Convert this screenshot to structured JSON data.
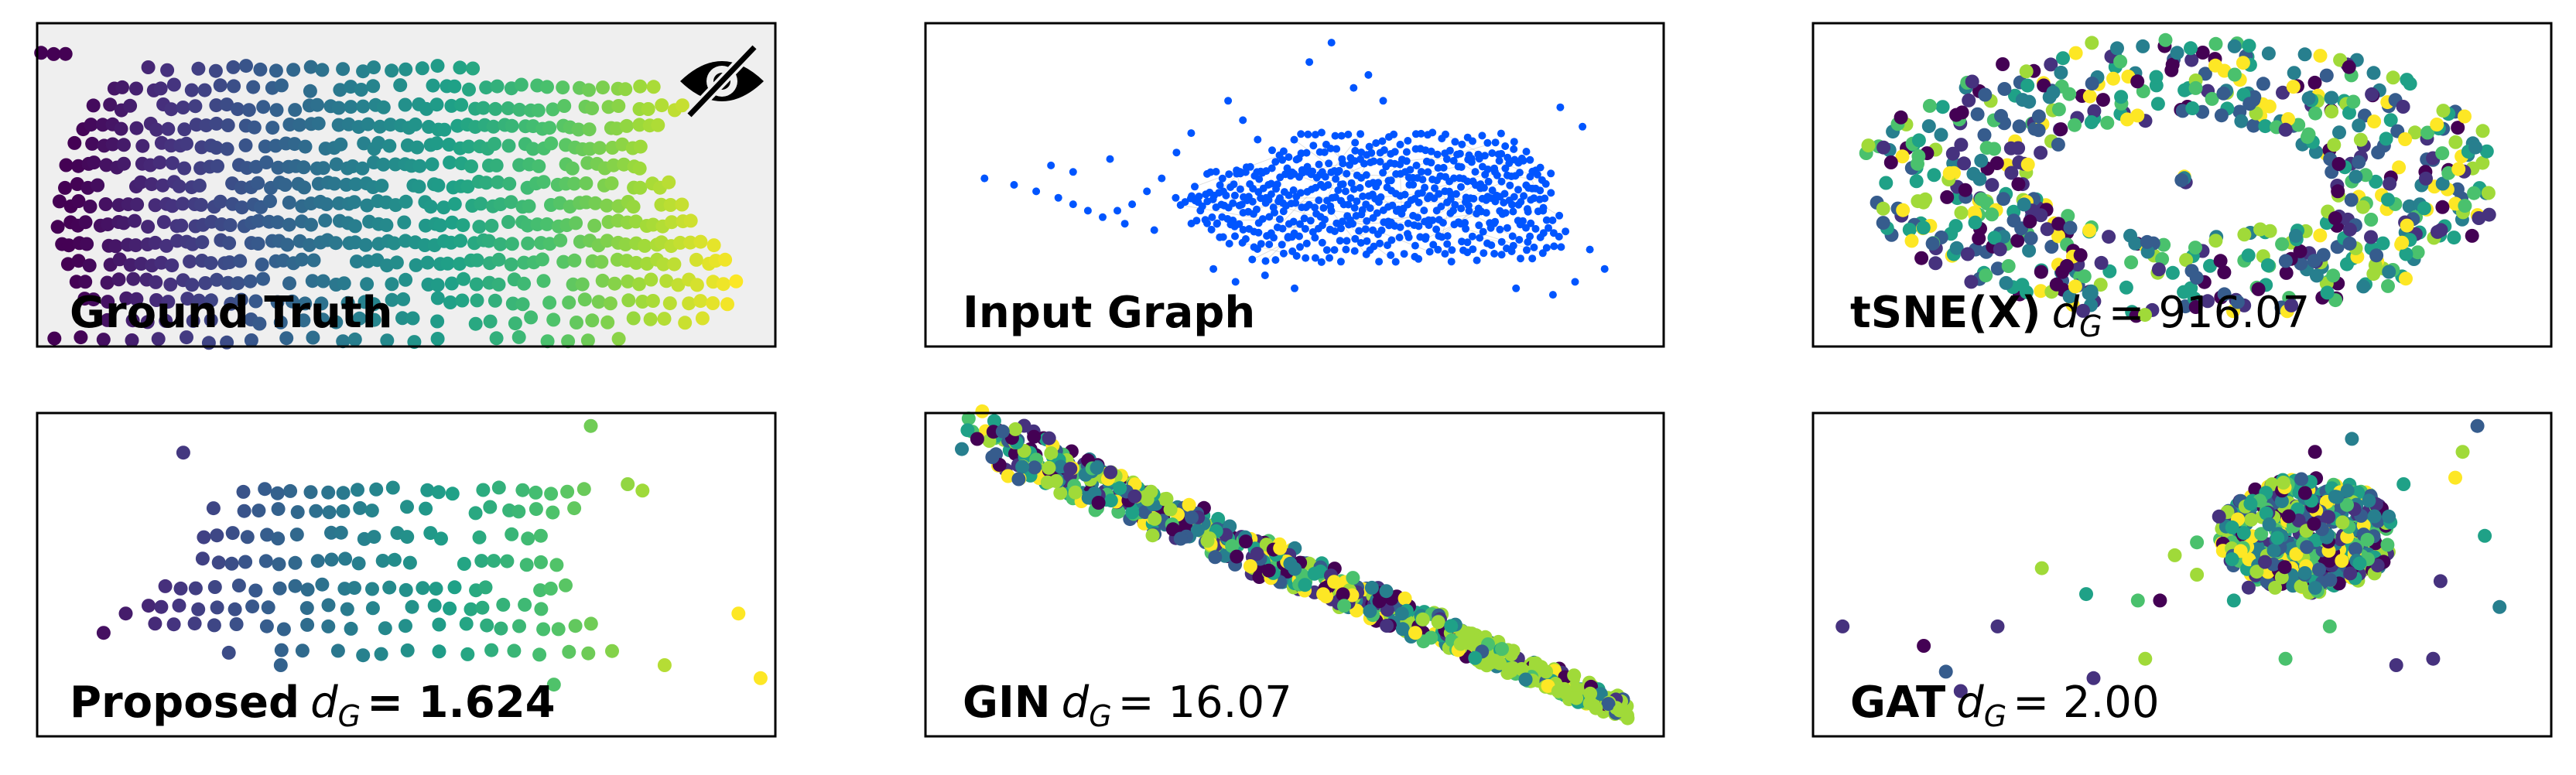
{
  "colors": {
    "viridis": [
      "#440154",
      "#46327e",
      "#365c8d",
      "#277f8e",
      "#1fa187",
      "#4ac16d",
      "#a0da39",
      "#fde725"
    ],
    "input_graph_points": "#0055ff",
    "input_graph_edges": "#c0c0c0",
    "hidden_background": "#efefef",
    "frame": "#000000"
  },
  "chart_data": [
    {
      "type": "scatter",
      "id": "ground_truth",
      "title": "Ground Truth",
      "metric_label": "",
      "metric_value": "",
      "icon": "eye-slash-icon",
      "background": "hidden",
      "axes": "off",
      "color_by": "x",
      "xlim": [
        0,
        100
      ],
      "ylim": [
        0,
        50
      ],
      "rows": [
        {
          "y": 45,
          "x_from": 1,
          "x_to": 4,
          "step": 1.5
        },
        {
          "y": 43,
          "x_from": 15,
          "x_to": 60,
          "step": 2.2
        },
        {
          "y": 40,
          "x_from": 10,
          "x_to": 85,
          "step": 1.8
        },
        {
          "y": 37,
          "x_from": 8,
          "x_to": 88,
          "step": 1.5
        },
        {
          "y": 34,
          "x_from": 6,
          "x_to": 84,
          "step": 1.3
        },
        {
          "y": 31,
          "x_from": 5,
          "x_to": 82,
          "step": 1.3
        },
        {
          "y": 28,
          "x_from": 4,
          "x_to": 84,
          "step": 1.3
        },
        {
          "y": 25,
          "x_from": 4,
          "x_to": 86,
          "step": 1.3
        },
        {
          "y": 22,
          "x_from": 3,
          "x_to": 88,
          "step": 1.3
        },
        {
          "y": 19,
          "x_from": 3,
          "x_to": 90,
          "step": 1.3
        },
        {
          "y": 16,
          "x_from": 3,
          "x_to": 92,
          "step": 1.3
        },
        {
          "y": 13,
          "x_from": 4,
          "x_to": 94,
          "step": 1.4
        },
        {
          "y": 10,
          "x_from": 5,
          "x_to": 96,
          "step": 1.6
        },
        {
          "y": 7,
          "x_from": 6,
          "x_to": 94,
          "step": 2.0
        },
        {
          "y": 4,
          "x_from": 10,
          "x_to": 92,
          "step": 2.6
        },
        {
          "y": 1,
          "x_from": 2,
          "x_to": 80,
          "step": 3.5
        }
      ]
    },
    {
      "type": "scatter",
      "id": "input_graph",
      "title": "Input Graph",
      "metric_label": "",
      "metric_value": "",
      "axes": "off",
      "color_by": "single",
      "xlim": [
        0,
        100
      ],
      "ylim": [
        0,
        50
      ],
      "rows": [
        {
          "y": 32,
          "x_from": 50,
          "x_to": 80,
          "step": 0.9
        },
        {
          "y": 30,
          "x_from": 47,
          "x_to": 82,
          "step": 0.8
        },
        {
          "y": 28,
          "x_from": 42,
          "x_to": 84,
          "step": 0.7
        },
        {
          "y": 26,
          "x_from": 38,
          "x_to": 85,
          "step": 0.6
        },
        {
          "y": 24,
          "x_from": 36,
          "x_to": 85,
          "step": 0.6
        },
        {
          "y": 22,
          "x_from": 34,
          "x_to": 84,
          "step": 0.6
        },
        {
          "y": 20,
          "x_from": 36,
          "x_to": 86,
          "step": 0.7
        },
        {
          "y": 18,
          "x_from": 38,
          "x_to": 87,
          "step": 0.8
        },
        {
          "y": 16,
          "x_from": 40,
          "x_to": 86,
          "step": 0.9
        },
        {
          "y": 14,
          "x_from": 44,
          "x_to": 84,
          "step": 1.1
        }
      ],
      "outliers": [
        [
          8,
          26
        ],
        [
          12,
          25
        ],
        [
          15,
          24
        ],
        [
          18,
          23
        ],
        [
          20,
          22
        ],
        [
          22,
          21
        ],
        [
          24,
          20
        ],
        [
          26,
          21
        ],
        [
          28,
          22
        ],
        [
          30,
          24
        ],
        [
          32,
          26
        ],
        [
          27,
          19
        ],
        [
          31,
          18
        ],
        [
          20,
          27
        ],
        [
          17,
          28
        ],
        [
          41,
          38
        ],
        [
          43,
          35
        ],
        [
          52,
          44
        ],
        [
          55,
          47
        ],
        [
          58,
          40
        ],
        [
          86,
          37
        ],
        [
          89,
          34
        ],
        [
          90,
          15
        ],
        [
          92,
          12
        ],
        [
          88,
          10
        ],
        [
          85,
          8
        ],
        [
          80,
          9
        ],
        [
          60,
          42
        ],
        [
          62,
          38
        ],
        [
          45,
          32
        ],
        [
          34,
          30
        ],
        [
          36,
          33
        ],
        [
          25,
          29
        ],
        [
          39,
          12
        ],
        [
          42,
          10
        ],
        [
          46,
          11
        ],
        [
          50,
          9
        ]
      ]
    },
    {
      "type": "scatter",
      "id": "tsne",
      "title": "tSNE(X)",
      "metric_label": "dG",
      "metric_value": "= 916.07",
      "axes": "off",
      "color_by": "category",
      "layout": "ring",
      "center": [
        50,
        26
      ],
      "radius_x_range": [
        20,
        44
      ],
      "radius_y_range": [
        9,
        22
      ],
      "point_count": 620,
      "xlim": [
        0,
        100
      ],
      "ylim": [
        0,
        50
      ]
    },
    {
      "type": "scatter",
      "id": "proposed",
      "title": "Proposed",
      "metric_label": "dG",
      "metric_value": "= 1.624",
      "metric_bold": true,
      "axes": "off",
      "color_by": "x",
      "xlim": [
        0,
        100
      ],
      "ylim": [
        0,
        50
      ],
      "rows": [
        {
          "y": 44,
          "x_from": 20,
          "x_to": 22,
          "step": 2
        },
        {
          "y": 38,
          "x_from": 28,
          "x_to": 76,
          "step": 2.2
        },
        {
          "y": 35,
          "x_from": 24,
          "x_to": 73,
          "step": 2.2
        },
        {
          "y": 31,
          "x_from": 22,
          "x_to": 70,
          "step": 2.2
        },
        {
          "y": 27,
          "x_from": 20,
          "x_to": 72,
          "step": 2.2
        },
        {
          "y": 23,
          "x_from": 17,
          "x_to": 74,
          "step": 2.2
        },
        {
          "y": 20,
          "x_from": 15,
          "x_to": 70,
          "step": 2.4
        },
        {
          "y": 17,
          "x_from": 16,
          "x_to": 76,
          "step": 2.6
        },
        {
          "y": 13,
          "x_from": 26,
          "x_to": 80,
          "step": 3.5
        }
      ],
      "outliers": [
        [
          75,
          48
        ],
        [
          80,
          39
        ],
        [
          82,
          38
        ],
        [
          95,
          19
        ],
        [
          98,
          9
        ],
        [
          12,
          19
        ],
        [
          9,
          16
        ],
        [
          85,
          11
        ],
        [
          70,
          8
        ],
        [
          33,
          11
        ]
      ]
    },
    {
      "type": "scatter",
      "id": "gin",
      "title": "GIN",
      "metric_label": "dG",
      "metric_value": "= 16.07",
      "axes": "off",
      "color_by": "category",
      "layout": "band",
      "band_from": [
        6,
        47
      ],
      "band_to": [
        95,
        4
      ],
      "band_width": 5,
      "point_count": 700,
      "xlim": [
        0,
        100
      ],
      "ylim": [
        0,
        50
      ]
    },
    {
      "type": "scatter",
      "id": "gat",
      "title": "GAT",
      "metric_label": "dG",
      "metric_value": "= 2.00",
      "axes": "off",
      "color_by": "category",
      "layout": "blob",
      "center": [
        67,
        31
      ],
      "radius_x": 12,
      "radius_y": 9,
      "point_count": 520,
      "xlim": [
        0,
        100
      ],
      "ylim": [
        0,
        50
      ],
      "outliers": [
        [
          4,
          17
        ],
        [
          15,
          14
        ],
        [
          18,
          10
        ],
        [
          20,
          7
        ],
        [
          25,
          17
        ],
        [
          31,
          26
        ],
        [
          37,
          22
        ],
        [
          38,
          9
        ],
        [
          44,
          21
        ],
        [
          47,
          21
        ],
        [
          49,
          28
        ],
        [
          45,
          12
        ],
        [
          52,
          25
        ],
        [
          52,
          30
        ],
        [
          57,
          21
        ],
        [
          59,
          23
        ],
        [
          55,
          34
        ],
        [
          64,
          12
        ],
        [
          68,
          44
        ],
        [
          71,
          37
        ],
        [
          73,
          46
        ],
        [
          78,
          34
        ],
        [
          79,
          11
        ],
        [
          80,
          39
        ],
        [
          85,
          24
        ],
        [
          87,
          40
        ],
        [
          88,
          44
        ],
        [
          91,
          31
        ],
        [
          93,
          20
        ],
        [
          90,
          48
        ],
        [
          84,
          12
        ],
        [
          70,
          17
        ]
      ]
    }
  ]
}
